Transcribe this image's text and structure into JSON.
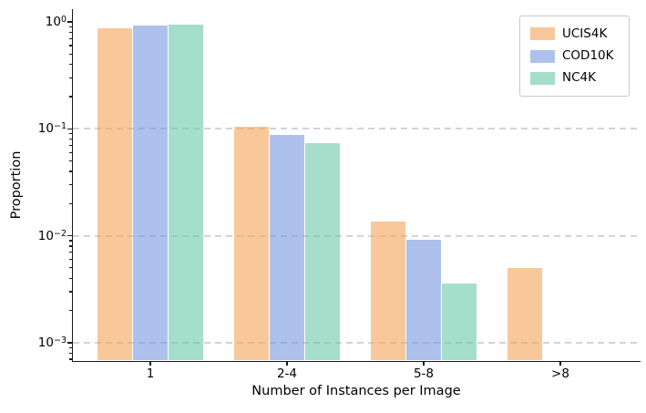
{
  "chart_data": {
    "type": "bar",
    "title": "",
    "xlabel": "Number of Instances per Image",
    "ylabel": "Proportion",
    "yscale": "log",
    "ylim": [
      0.0007,
      1.35
    ],
    "grid": {
      "axis": "y",
      "style": "dashed",
      "color": "#d4d4d4"
    },
    "categories": [
      "1",
      "2-4",
      "5-8",
      ">8"
    ],
    "series": [
      {
        "name": "UCIS4K",
        "base_color": "#F3A357",
        "fill_alpha": 0.6,
        "rendered_color": "#F8C89A",
        "values": [
          0.88,
          0.104,
          0.0136,
          0.005
        ]
      },
      {
        "name": "COD10K",
        "base_color": "#7898DF",
        "fill_alpha": 0.6,
        "rendered_color": "#AEC1EC",
        "values": [
          0.92,
          0.087,
          0.0092,
          null
        ]
      },
      {
        "name": "NC4K",
        "base_color": "#69C8A8",
        "fill_alpha": 0.6,
        "rendered_color": "#A5DECB",
        "values": [
          0.94,
          0.074,
          0.0036,
          null
        ]
      }
    ],
    "yticks": [
      {
        "value": 1,
        "label_base": "10",
        "label_exp": "0"
      },
      {
        "value": 0.1,
        "label_base": "10",
        "label_exp": "−1"
      },
      {
        "value": 0.01,
        "label_base": "10",
        "label_exp": "−2"
      },
      {
        "value": 0.001,
        "label_base": "10",
        "label_exp": "−3"
      }
    ],
    "legend": {
      "position": "upper right",
      "entries": [
        "UCIS4K",
        "COD10K",
        "NC4K"
      ]
    }
  }
}
